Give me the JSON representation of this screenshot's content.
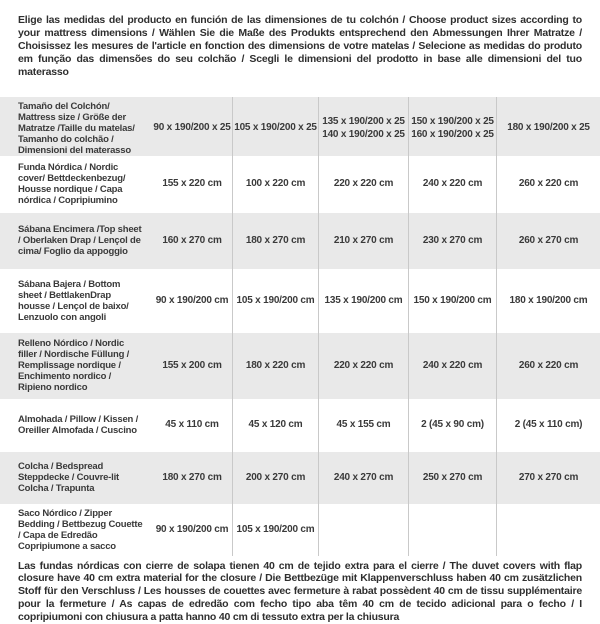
{
  "header": {
    "text": "Elige las medidas del producto en función de las dimensiones de tu colchón / Choose product sizes according to your mattress dimensions / Wählen Sie die Maße des Produkts entsprechend den Abmessungen Ihrer Matratze / Choisissez les mesures de l'article en fonction des dimensions de votre matelas / Selecione as medidas do produto em função das dimensões do seu colchão / Scegli le dimensioni del prodotto in base alle dimensioni del tuo materasso"
  },
  "table": {
    "rows": [
      {
        "label": "Tamaño del Colchón/ Mattress size / Größe der Matratze /Taille du matelas/ Tamanho do colchão / Dimensioni del materasso",
        "values": [
          "90 x 190/200 x 25",
          "105 x 190/200 x 25",
          "135 x 190/200 x 25\n140 x 190/200 x 25",
          "150 x 190/200 x 25\n160 x 190/200 x 25",
          "180 x 190/200 x 25"
        ]
      },
      {
        "label": "Funda Nórdica / Nordic cover/ Bettdeckenbezug/ Housse nordique / Capa nórdica / Copripiumino",
        "values": [
          "155 x 220 cm",
          "100 x 220 cm",
          "220 x 220 cm",
          "240 x 220 cm",
          "260 x 220 cm"
        ]
      },
      {
        "label": "Sábana Encimera /Top sheet / Oberlaken Drap / Lençol de cima/ Foglio da appoggio",
        "values": [
          "160 x 270 cm",
          "180 x 270 cm",
          "210 x 270 cm",
          "230 x 270 cm",
          "260 x 270 cm"
        ]
      },
      {
        "label": "Sábana Bajera / Bottom sheet / BettlakenDrap housse / Lençol de baixo/ Lenzuolo con angoli",
        "values": [
          "90 x 190/200 cm",
          "105 x 190/200 cm",
          "135 x 190/200 cm",
          "150 x 190/200 cm",
          "180 x 190/200 cm"
        ]
      },
      {
        "label": "Relleno Nórdico / Nordic filler / Nordische Füllung / Remplissage nordique / Enchimento nordico / Ripieno nordico",
        "values": [
          "155 x 200 cm",
          "180 x 220 cm",
          "220 x 220 cm",
          "240 x 220 cm",
          "260 x 220 cm"
        ]
      },
      {
        "label": "Almohada / Pillow / Kissen / Oreiller Almofada / Cuscino",
        "values": [
          "45 x 110 cm",
          "45 x 120 cm",
          "45 x 155 cm",
          "2 (45 x 90 cm)",
          "2 (45 x 110 cm)"
        ]
      },
      {
        "label": "Colcha / Bedspread Steppdecke / Couvre-lit Colcha / Trapunta",
        "values": [
          "180 x 270 cm",
          "200 x 270 cm",
          "240 x 270 cm",
          "250 x 270 cm",
          "270 x 270 cm"
        ]
      },
      {
        "label": "Saco Nórdico / Zipper Bedding / Bettbezug Couette / Capa de Edredão Copripiumone a sacco",
        "values": [
          "90 x 190/200 cm",
          "105 x 190/200 cm",
          "",
          "",
          ""
        ]
      }
    ]
  },
  "footer": {
    "text": "Las fundas nórdicas con cierre de solapa tienen 40 cm de tejido extra para el cierre / The duvet covers with flap closure have 40 cm extra material for the closure / Die Bettbezüge mit Klappenverschluss haben 40 cm zusätzlichen Stoff für den Verschluss / Les housses de couettes avec fermeture à rabat possèdent 40 cm de tissu supplémentaire pour la fermeture / As capas de edredão com fecho tipo aba têm 40 cm de tecido adicional para o fecho / I copripiumoni con chiusura a patta hanno 40 cm di tessuto extra per la chiusura"
  },
  "colors": {
    "row_stripe": "#e9e9e9",
    "divider": "#c9c9c9",
    "text": "#3a3a3a"
  }
}
